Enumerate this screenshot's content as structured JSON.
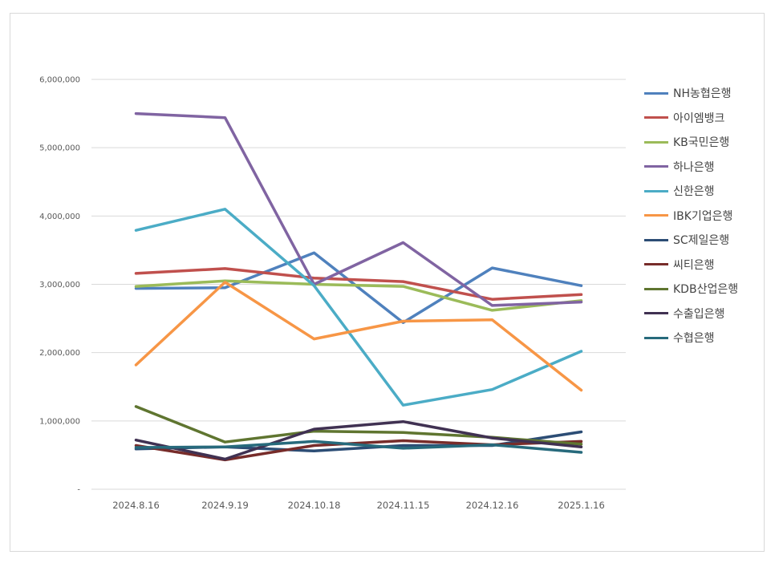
{
  "chart_data": {
    "type": "line",
    "title": "",
    "xlabel": "",
    "ylabel": "",
    "categories": [
      "2024.8.16",
      "2024.9.19",
      "2024.10.18",
      "2024.11.15",
      "2024.12.16",
      "2025.1.16"
    ],
    "ylim": [
      0,
      6000000
    ],
    "yticks": [
      0,
      1000000,
      2000000,
      3000000,
      4000000,
      5000000,
      6000000
    ],
    "ytick_labels": [
      "-",
      "1,000,000",
      "2,000,000",
      "3,000,000",
      "4,000,000",
      "5,000,000",
      "6,000,000"
    ],
    "grid": true,
    "legend_position": "right",
    "series": [
      {
        "name": "NH농협은행",
        "color": "#4F81BD",
        "values": [
          2940000,
          2950000,
          3460000,
          2440000,
          3240000,
          2980000
        ]
      },
      {
        "name": "아이엠뱅크",
        "color": "#C0504D",
        "values": [
          3160000,
          3230000,
          3090000,
          3040000,
          2780000,
          2850000
        ]
      },
      {
        "name": "KB국민은행",
        "color": "#9BBB59",
        "values": [
          2970000,
          3050000,
          3000000,
          2970000,
          2620000,
          2760000
        ]
      },
      {
        "name": "하나은행",
        "color": "#8064A2",
        "values": [
          5500000,
          5440000,
          3000000,
          3610000,
          2690000,
          2740000
        ]
      },
      {
        "name": "신한은행",
        "color": "#4BACC6",
        "values": [
          3790000,
          4100000,
          2980000,
          1230000,
          1460000,
          2020000
        ]
      },
      {
        "name": "IBK기업은행",
        "color": "#F79646",
        "values": [
          1820000,
          3030000,
          2200000,
          2460000,
          2480000,
          1450000
        ]
      },
      {
        "name": "SC제일은행",
        "color": "#2C4D75",
        "values": [
          590000,
          620000,
          560000,
          640000,
          640000,
          840000
        ]
      },
      {
        "name": "씨티은행",
        "color": "#772C2A",
        "values": [
          640000,
          430000,
          640000,
          710000,
          650000,
          700000
        ]
      },
      {
        "name": "KDB산업은행",
        "color": "#5F7530",
        "values": [
          1210000,
          690000,
          850000,
          830000,
          760000,
          660000
        ]
      },
      {
        "name": "수출입은행",
        "color": "#403152",
        "values": [
          720000,
          440000,
          880000,
          990000,
          750000,
          620000
        ]
      },
      {
        "name": "수협은행",
        "color": "#276A7C",
        "values": [
          610000,
          620000,
          700000,
          600000,
          650000,
          540000
        ]
      }
    ]
  }
}
